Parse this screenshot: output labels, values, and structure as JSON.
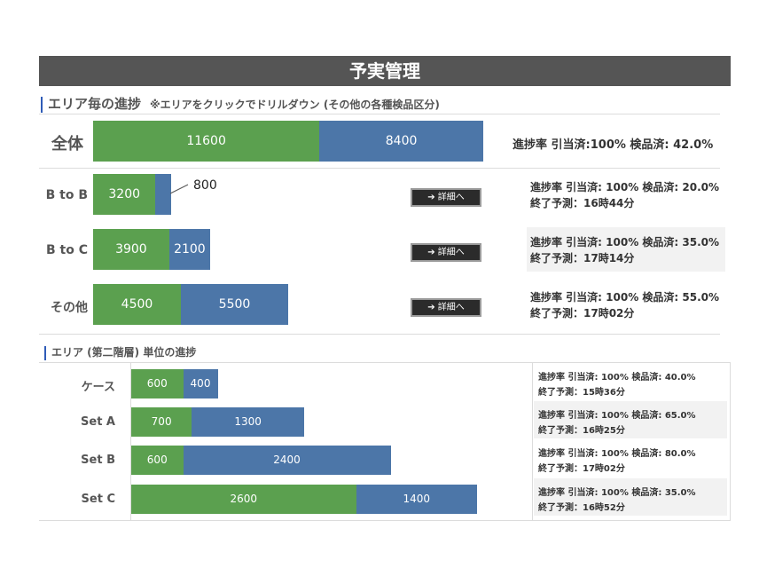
{
  "header": {
    "title": "予実管理"
  },
  "section1": {
    "title": "エリア毎の進捗",
    "note": "※エリアをクリックでドリルダウン (その他の各種検品区分)",
    "detail_label": "➔ 詳細へ",
    "total": {
      "label": "全体",
      "green": 11600,
      "blue": 8400,
      "stat": "進捗率 引当済:100%  検品済: 42.0%"
    },
    "rows": [
      {
        "label": "B to B",
        "green": 3200,
        "blue": 800,
        "blue_callout": "800",
        "stat1": "進捗率 引当済: 100%  検品済: 20.0%",
        "stat2": "終了予測：16時44分"
      },
      {
        "label": "B to C",
        "green": 3900,
        "blue": 2100,
        "stat1": "進捗率 引当済: 100%  検品済: 35.0%",
        "stat2": "終了予測：17時14分"
      },
      {
        "label": "その他",
        "green": 4500,
        "blue": 5500,
        "stat1": "進捗率 引当済: 100%  検品済: 55.0%",
        "stat2": "終了予測：17時02分"
      }
    ]
  },
  "section2": {
    "title": "エリア (第二階層) 単位の進捗",
    "rows": [
      {
        "label": "ケース",
        "green": 600,
        "blue": 400,
        "stat1": "進捗率 引当済: 100%  検品済: 40.0%",
        "stat2": "終了予測：15時36分"
      },
      {
        "label": "Set A",
        "green": 700,
        "blue": 1300,
        "stat1": "進捗率 引当済: 100%  検品済: 65.0%",
        "stat2": "終了予測：16時25分"
      },
      {
        "label": "Set B",
        "green": 600,
        "blue": 2400,
        "stat1": "進捗率 引当済: 100%  検品済: 80.0%",
        "stat2": "終了予測：17時02分"
      },
      {
        "label": "Set C",
        "green": 2600,
        "blue": 1400,
        "stat1": "進捗率 引当済: 100%  検品済: 35.0%",
        "stat2": "終了予測：16時52分"
      }
    ]
  },
  "colors": {
    "green": "#5ba04f",
    "blue": "#4c76a8",
    "header": "#555555"
  }
}
